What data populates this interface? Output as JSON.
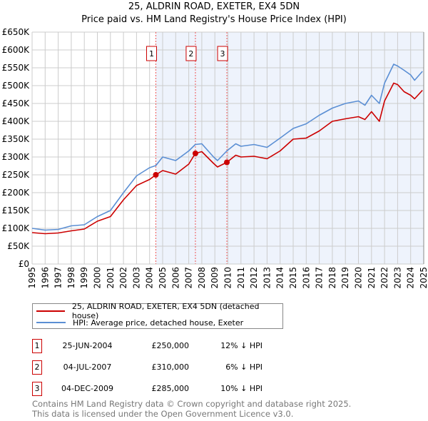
{
  "title": "25, ALDRIN ROAD, EXETER, EX4 5DN",
  "subtitle": "Price paid vs. HM Land Registry's House Price Index (HPI)",
  "chart_data": {
    "type": "line",
    "title": "25, ALDRIN ROAD, EXETER, EX4 5DN — Price paid vs. HM Land Registry's House Price Index (HPI)",
    "xlim": [
      1995,
      2025
    ],
    "ylim": [
      0,
      650000
    ],
    "grid": true,
    "y_ticks": [
      {
        "v": 0,
        "label": "£0"
      },
      {
        "v": 50000,
        "label": "£50K"
      },
      {
        "v": 100000,
        "label": "£100K"
      },
      {
        "v": 150000,
        "label": "£150K"
      },
      {
        "v": 200000,
        "label": "£200K"
      },
      {
        "v": 250000,
        "label": "£250K"
      },
      {
        "v": 300000,
        "label": "£300K"
      },
      {
        "v": 350000,
        "label": "£350K"
      },
      {
        "v": 400000,
        "label": "£400K"
      },
      {
        "v": 450000,
        "label": "£450K"
      },
      {
        "v": 500000,
        "label": "£500K"
      },
      {
        "v": 550000,
        "label": "£550K"
      },
      {
        "v": 600000,
        "label": "£600K"
      },
      {
        "v": 650000,
        "label": "£650K"
      }
    ],
    "x_ticks": [
      "1995",
      "1996",
      "1997",
      "1998",
      "1999",
      "2000",
      "2001",
      "2002",
      "2003",
      "2004",
      "2005",
      "2006",
      "2007",
      "2008",
      "2009",
      "2010",
      "2011",
      "2012",
      "2013",
      "2014",
      "2015",
      "2016",
      "2017",
      "2018",
      "2019",
      "2020",
      "2021",
      "2022",
      "2023",
      "2024",
      "2025"
    ],
    "series": [
      {
        "name": "25, ALDRIN ROAD, EXETER, EX4 5DN (detached house)",
        "color": "#cc0000",
        "x": [
          1995,
          1996,
          1997,
          1998,
          1999,
          2000,
          2001,
          2002,
          2003,
          2004,
          2004.48,
          2005,
          2006,
          2007,
          2007.5,
          2008,
          2008.9,
          2009.2,
          2009.92,
          2010.6,
          2011,
          2012,
          2013,
          2014,
          2015,
          2016,
          2017,
          2018,
          2019,
          2020,
          2020.5,
          2021,
          2021.6,
          2022,
          2022.7,
          2023,
          2023.5,
          2024,
          2024.3,
          2024.9
        ],
        "y": [
          88000,
          85000,
          87000,
          93000,
          98000,
          120000,
          133000,
          180000,
          220000,
          237000,
          250000,
          262000,
          252000,
          280000,
          310000,
          315000,
          282000,
          272000,
          285000,
          305000,
          300000,
          302000,
          295000,
          317000,
          350000,
          353000,
          373000,
          400000,
          407000,
          413000,
          405000,
          427000,
          400000,
          457000,
          507000,
          503000,
          483000,
          473000,
          463000,
          487000
        ]
      },
      {
        "name": "HPI: Average price, detached house, Exeter",
        "color": "#5b8fd4",
        "x": [
          1995,
          1996,
          1997,
          1998,
          1999,
          2000,
          2001,
          2002,
          2003,
          2004,
          2004.48,
          2005,
          2006,
          2007,
          2007.5,
          2008,
          2008.9,
          2009.2,
          2009.92,
          2010.6,
          2011,
          2012,
          2013,
          2014,
          2015,
          2016,
          2017,
          2018,
          2019,
          2020,
          2020.5,
          2021,
          2021.6,
          2022,
          2022.7,
          2023,
          2023.5,
          2024,
          2024.3,
          2024.9
        ],
        "y": [
          100000,
          95000,
          97000,
          107000,
          110000,
          133000,
          150000,
          200000,
          247000,
          270000,
          276000,
          300000,
          290000,
          317000,
          335000,
          337000,
          300000,
          290000,
          317000,
          337000,
          330000,
          335000,
          327000,
          353000,
          380000,
          393000,
          417000,
          437000,
          450000,
          457000,
          445000,
          473000,
          450000,
          507000,
          560000,
          555000,
          543000,
          530000,
          515000,
          540000
        ]
      }
    ],
    "sales": [
      {
        "label": "1",
        "x": 2004.48,
        "y": 250000
      },
      {
        "label": "2",
        "x": 2007.51,
        "y": 310000
      },
      {
        "label": "3",
        "x": 2009.92,
        "y": 285000
      }
    ]
  },
  "legend": {
    "property": "25, ALDRIN ROAD, EXETER, EX4 5DN (detached house)",
    "hpi": "HPI: Average price, detached house, Exeter"
  },
  "transactions": [
    {
      "num": "1",
      "date": "25-JUN-2004",
      "price": "£250,000",
      "hpi": "12% ↓ HPI"
    },
    {
      "num": "2",
      "date": "04-JUL-2007",
      "price": "£310,000",
      "hpi": "6% ↓ HPI"
    },
    {
      "num": "3",
      "date": "04-DEC-2009",
      "price": "£285,000",
      "hpi": "10% ↓ HPI"
    }
  ],
  "footer": {
    "line1": "Contains HM Land Registry data © Crown copyright and database right 2025.",
    "line2": "This data is licensed under the Open Government Licence v3.0."
  }
}
